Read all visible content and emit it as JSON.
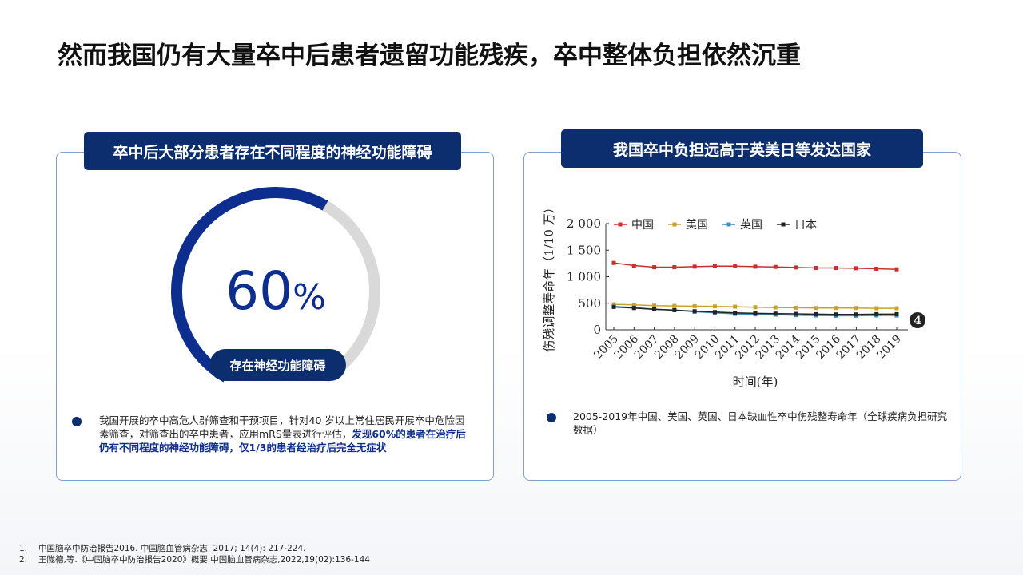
{
  "title": "然而我国仍有大量卒中后患者遗留功能残疾，卒中整体负担依然沉重",
  "left_panel": {
    "header": "卒中后大部分患者存在不同程度的神经功能障碍",
    "donut": {
      "value": 60,
      "unit": "%",
      "caption": "存在神经功能障碍"
    },
    "bullet": {
      "text": "我国开展的卒中高危人群筛查和干预项目，针对40 岁以上常住居民开展卒中危险因素筛查，对筛查出的卒中患者，应用mRS量表进行评估，",
      "highlight": "发现60%的患者在治疗后仍有不同程度的神经功能障碍，仅1/3的患者经治疗后完全无症状"
    }
  },
  "right_panel": {
    "header": "我国卒中负担远高于英美日等发达国家",
    "badge": "4",
    "caption": "2005-2019年中国、美国、英国、日本缺血性卒中伤残整寿命年（全球疾病负担研究数据）"
  },
  "chart_data": {
    "type": "line",
    "x_label": "时间(年)",
    "y_label": "伤残调整寿命年（1/10 万）",
    "categories": [
      "2005",
      "2006",
      "2007",
      "2008",
      "2009",
      "2010",
      "2011",
      "2012",
      "2013",
      "2014",
      "2015",
      "2016",
      "2017",
      "2018",
      "2019"
    ],
    "ylim": [
      0,
      2000
    ],
    "yticks": [
      0,
      500,
      {
        "value": 1000,
        "label": "1 000"
      },
      {
        "value": 1500,
        "label": "1 500"
      },
      {
        "value": 2000,
        "label": "2 000"
      }
    ],
    "series": [
      {
        "name": "中国",
        "color": "#c8302c",
        "values": [
          1260,
          1210,
          1180,
          1180,
          1190,
          1200,
          1200,
          1190,
          1185,
          1175,
          1165,
          1165,
          1160,
          1150,
          1140
        ]
      },
      {
        "name": "美国",
        "color": "#c9a227",
        "values": [
          480,
          470,
          455,
          450,
          445,
          440,
          435,
          425,
          420,
          415,
          410,
          410,
          410,
          405,
          405
        ]
      },
      {
        "name": "英国",
        "color": "#3a8fc4",
        "values": [
          440,
          420,
          390,
          370,
          340,
          320,
          300,
          290,
          285,
          275,
          270,
          265,
          265,
          270,
          270
        ]
      },
      {
        "name": "日本",
        "color": "#222222",
        "values": [
          430,
          410,
          385,
          370,
          350,
          335,
          320,
          310,
          305,
          300,
          295,
          290,
          290,
          295,
          295
        ]
      }
    ]
  },
  "footnotes": [
    {
      "number": "1.",
      "text": "中国脑卒中防治报告2016. 中国脑血管病杂志. 2017; 14(4): 217-224."
    },
    {
      "number": "2.",
      "text": "王陇德,等.《中国脑卒中防治报告2020》概要.中国脑血管病杂志,2022,19(02):136-144"
    }
  ]
}
